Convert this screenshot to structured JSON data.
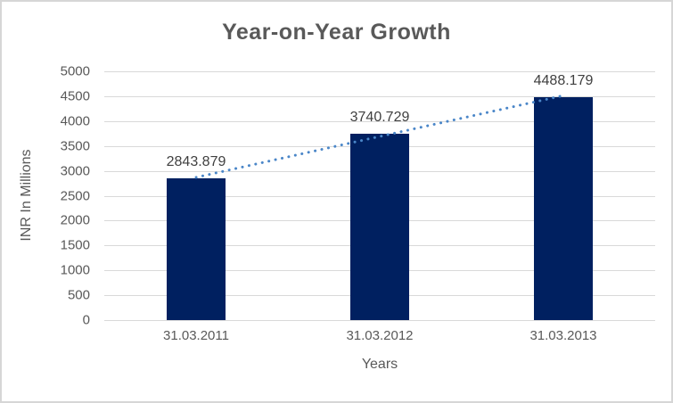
{
  "chart_data": {
    "type": "bar",
    "title": "Year-on-Year Growth",
    "xlabel": "Years",
    "ylabel": "INR In Millions",
    "categories": [
      "31.03.2011",
      "31.03.2012",
      "31.03.2013"
    ],
    "values": [
      2843.879,
      3740.729,
      4488.179
    ],
    "value_labels": [
      "2843.879",
      "3740.729",
      "4488.179"
    ],
    "ylim": [
      0,
      5000
    ],
    "yticks": [
      0,
      500,
      1000,
      1500,
      2000,
      2500,
      3000,
      3500,
      4000,
      4500,
      5000
    ],
    "grid": true,
    "legend": "none",
    "trendline": {
      "type": "linear",
      "style": "dotted"
    },
    "colors": {
      "bar": "#002060",
      "trendline": "#4a86c8",
      "gridline": "#d9d9d9",
      "title_text": "#595959",
      "axis_text": "#595959",
      "data_label_text": "#404040",
      "border": "#d6d6d6",
      "background": "#ffffff"
    }
  }
}
